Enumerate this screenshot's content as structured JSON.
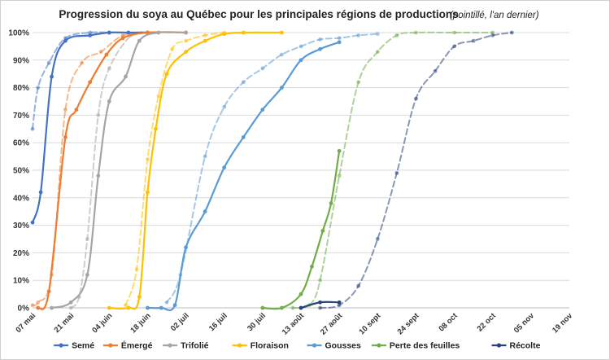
{
  "chart_data": {
    "type": "line",
    "title": "Progression du soya au Québec pour les principales régions de productions",
    "subtitle": "(pointillé, l'an dernier)",
    "xlabel": "",
    "ylabel": "",
    "ylim": [
      0,
      100
    ],
    "y_unit": "%",
    "yticks": [
      0,
      10,
      20,
      30,
      40,
      50,
      60,
      70,
      80,
      90,
      100
    ],
    "x_tick_labels": [
      "07 mai",
      "21 mai",
      "04 juin",
      "18 juin",
      "02 juil",
      "16 juil",
      "30 juil",
      "13 août",
      "27 août",
      "10 sept",
      "24 sept",
      "08 oct",
      "22 oct",
      "05 nov",
      "19 nov"
    ],
    "grid": true,
    "legend_position": "bottom",
    "series": [
      {
        "name": "Semé",
        "color": "#4472C4",
        "current": [
          [
            0,
            31
          ],
          [
            3,
            42
          ],
          [
            7,
            84
          ],
          [
            12,
            97
          ],
          [
            21,
            99
          ],
          [
            28,
            100
          ],
          [
            35,
            100
          ],
          [
            42,
            100
          ]
        ],
        "previous": [
          [
            0,
            65
          ],
          [
            2,
            80
          ],
          [
            6,
            89
          ],
          [
            12,
            98
          ],
          [
            21,
            100
          ],
          [
            28,
            100
          ]
        ]
      },
      {
        "name": "Émergé",
        "color": "#ED7D31",
        "current": [
          [
            2,
            0
          ],
          [
            6,
            6
          ],
          [
            12,
            62
          ],
          [
            16,
            72
          ],
          [
            21,
            82
          ],
          [
            27,
            92
          ],
          [
            33,
            98
          ],
          [
            42,
            100
          ],
          [
            56,
            100
          ]
        ],
        "previous": [
          [
            0,
            1
          ],
          [
            2,
            2
          ],
          [
            7,
            12
          ],
          [
            12,
            72
          ],
          [
            18,
            89
          ],
          [
            25,
            93
          ],
          [
            33,
            99
          ],
          [
            42,
            100
          ]
        ]
      },
      {
        "name": "Trifolié",
        "color": "#A5A5A5",
        "current": [
          [
            7,
            0
          ],
          [
            14,
            2
          ],
          [
            20,
            12
          ],
          [
            24,
            48
          ],
          [
            28,
            75
          ],
          [
            34,
            84
          ],
          [
            39,
            97
          ],
          [
            46,
            100
          ],
          [
            56,
            100
          ]
        ],
        "previous": [
          [
            14,
            0
          ],
          [
            17,
            4
          ],
          [
            20,
            25
          ],
          [
            24,
            70
          ],
          [
            28,
            87
          ],
          [
            36,
            99
          ],
          [
            42,
            100
          ]
        ]
      },
      {
        "name": "Floraison",
        "color": "#FFC000",
        "current": [
          [
            28,
            0
          ],
          [
            35,
            0
          ],
          [
            39,
            4
          ],
          [
            42,
            42
          ],
          [
            45,
            65
          ],
          [
            49,
            85
          ],
          [
            56,
            93
          ],
          [
            63,
            97
          ],
          [
            70,
            99.5
          ],
          [
            77,
            100
          ],
          [
            91,
            100
          ]
        ],
        "previous": [
          [
            34,
            1
          ],
          [
            38,
            14
          ],
          [
            42,
            54
          ],
          [
            46,
            77
          ],
          [
            51,
            94
          ],
          [
            56,
            97
          ],
          [
            63,
            99
          ],
          [
            70,
            100
          ]
        ]
      },
      {
        "name": "Gousses",
        "color": "#5B9BD5",
        "current": [
          [
            42,
            0
          ],
          [
            47,
            0
          ],
          [
            52,
            1
          ],
          [
            56,
            22
          ],
          [
            63,
            35
          ],
          [
            70,
            51
          ],
          [
            77,
            62
          ],
          [
            84,
            72
          ],
          [
            91,
            80
          ],
          [
            98,
            90
          ],
          [
            105,
            94
          ],
          [
            112,
            96.5
          ]
        ],
        "previous": [
          [
            49,
            2
          ],
          [
            54,
            12
          ],
          [
            63,
            55
          ],
          [
            70,
            73
          ],
          [
            77,
            82
          ],
          [
            84,
            87
          ],
          [
            91,
            92
          ],
          [
            98,
            95
          ],
          [
            105,
            97.5
          ],
          [
            112,
            98
          ],
          [
            119,
            99
          ],
          [
            126,
            99.5
          ]
        ]
      },
      {
        "name": "Perte des feuilles",
        "color": "#70AD47",
        "current": [
          [
            84,
            0
          ],
          [
            91,
            0
          ],
          [
            98,
            5
          ],
          [
            102,
            15
          ],
          [
            106,
            28
          ],
          [
            109,
            38
          ],
          [
            112,
            57
          ]
        ],
        "previous": [
          [
            95,
            0
          ],
          [
            101,
            1
          ],
          [
            105,
            10
          ],
          [
            112,
            48
          ],
          [
            119,
            82
          ],
          [
            126,
            93
          ],
          [
            133,
            99
          ],
          [
            140,
            100
          ],
          [
            154,
            100
          ],
          [
            168,
            100
          ]
        ]
      },
      {
        "name": "Récolte",
        "color": "#264478",
        "current": [
          [
            98,
            0
          ],
          [
            105,
            2
          ],
          [
            112,
            2
          ]
        ],
        "previous": [
          [
            105,
            0
          ],
          [
            112,
            1
          ],
          [
            119,
            8
          ],
          [
            126,
            25
          ],
          [
            133,
            49
          ],
          [
            140,
            76
          ],
          [
            147,
            86
          ],
          [
            154,
            95
          ],
          [
            161,
            97
          ],
          [
            168,
            99
          ],
          [
            175,
            100
          ]
        ]
      }
    ]
  }
}
